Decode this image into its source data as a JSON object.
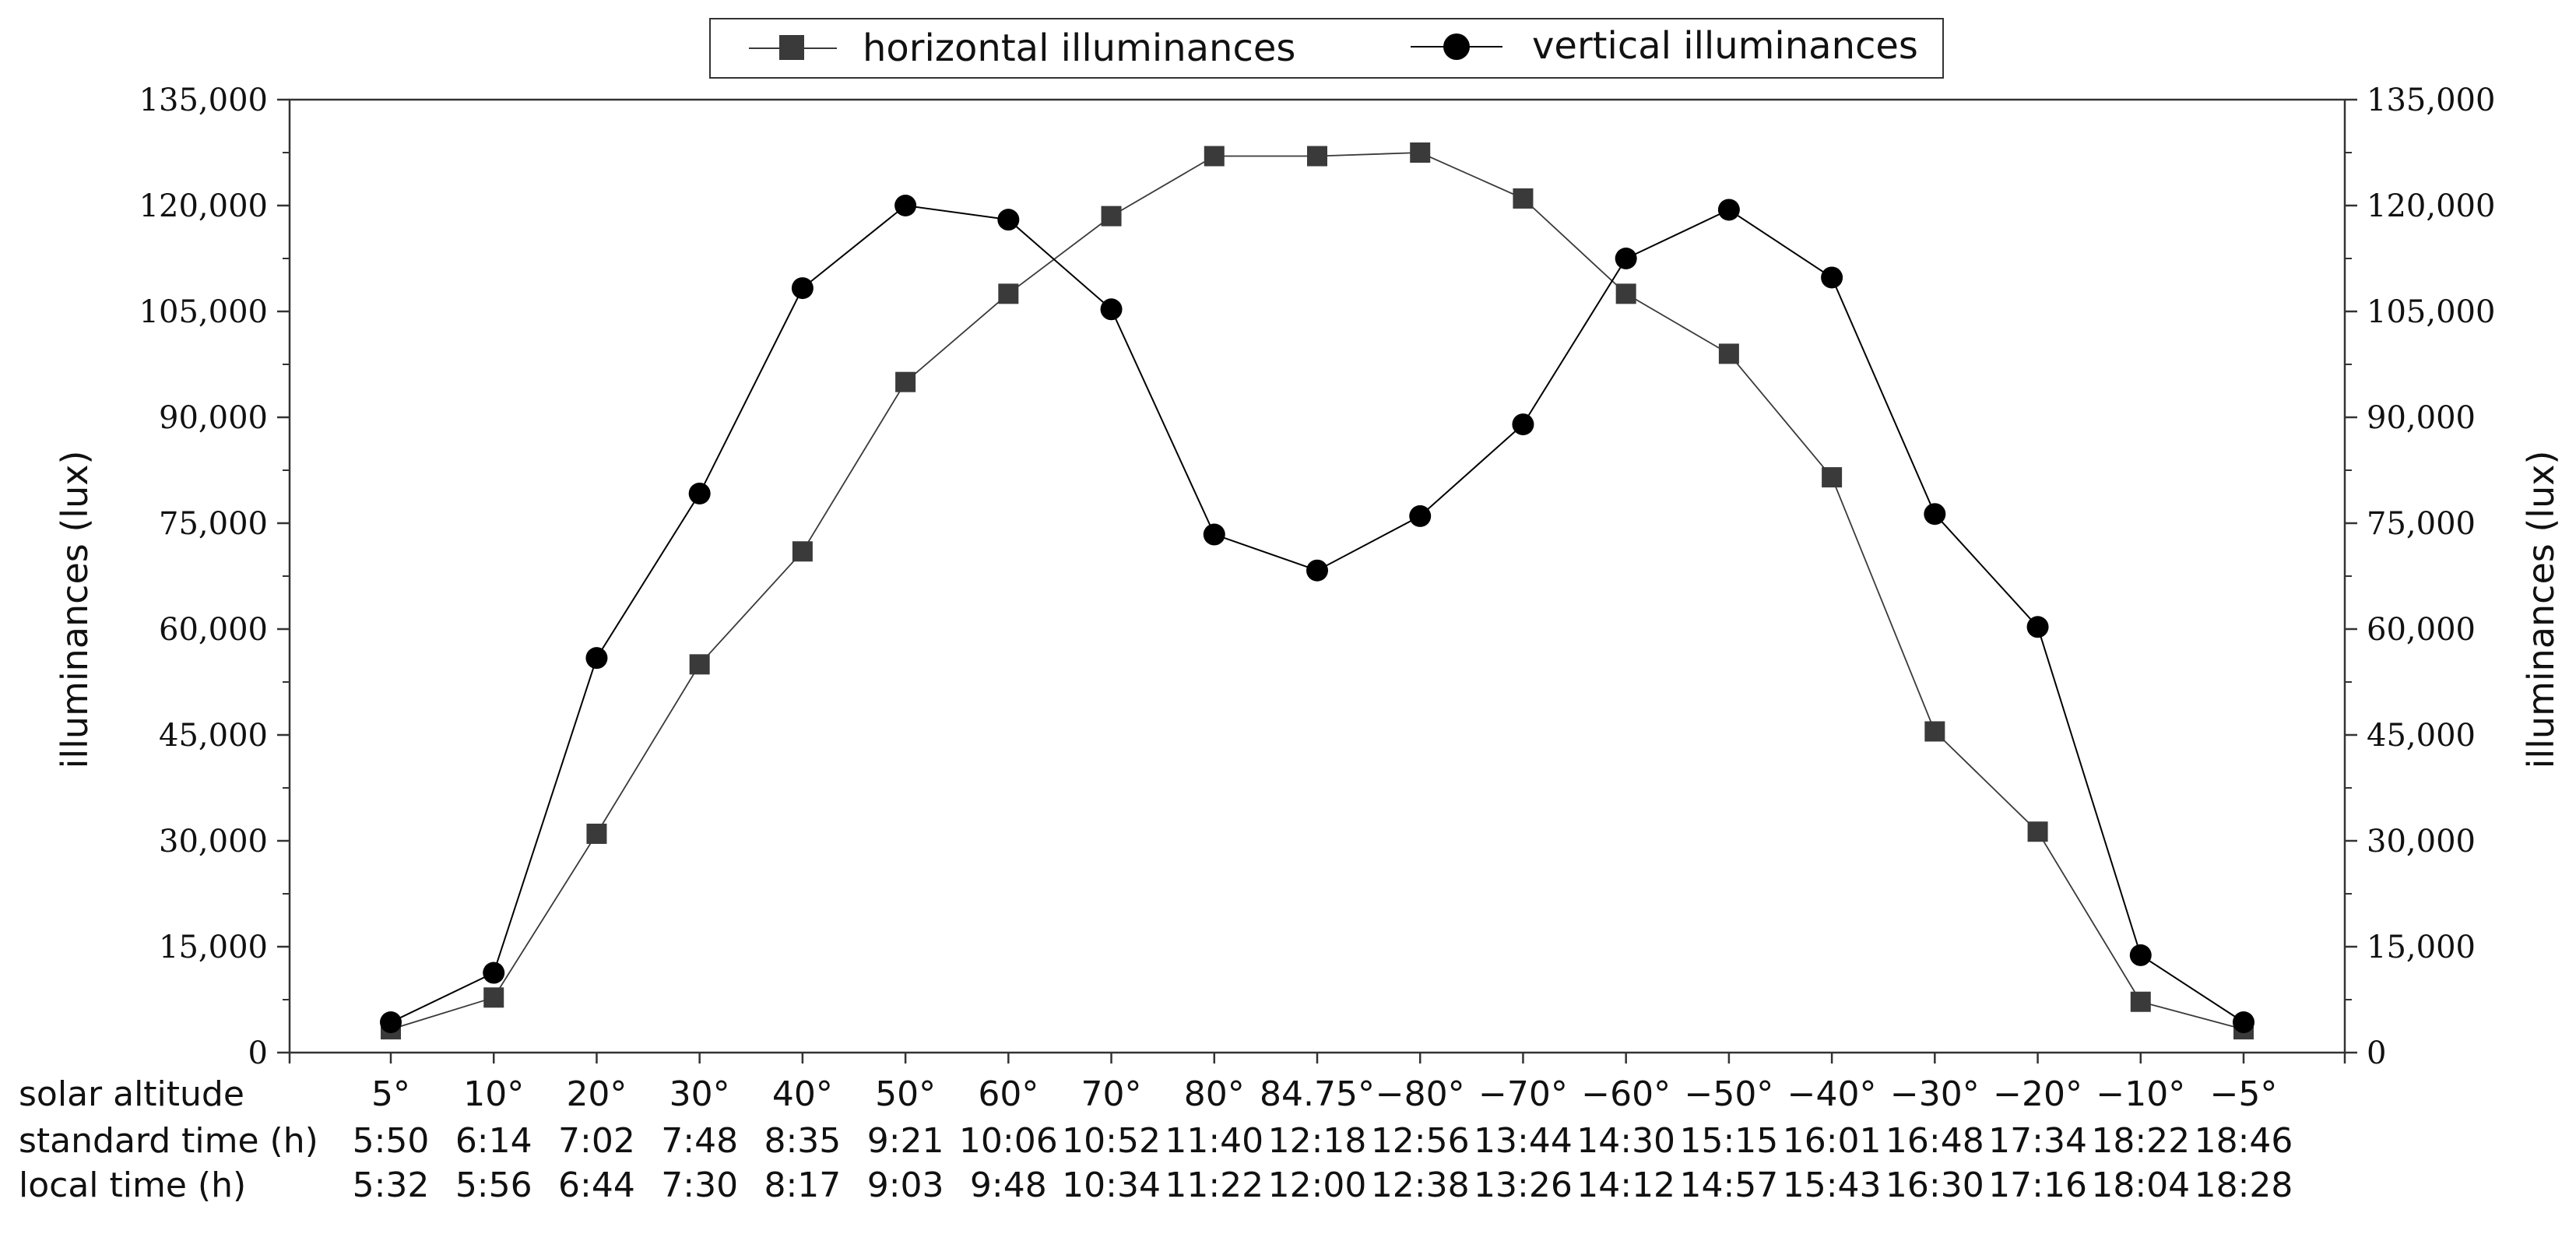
{
  "chart_data": {
    "type": "line",
    "title": "",
    "ylabel": "illuminances (lux)",
    "ylabel_right": "illuminances (lux)",
    "ylim": [
      0,
      135000
    ],
    "y_ticks": [
      "0",
      "15,000",
      "30,000",
      "45,000",
      "60,000",
      "75,000",
      "90,000",
      "105,000",
      "120,000",
      "135,000"
    ],
    "grid": false,
    "legend_position": "top-center",
    "row_labels": {
      "solar_altitude": "solar altitude",
      "standard_time": "standard time (h)",
      "local_time": "local time (h)"
    },
    "categories": [
      "5°",
      "10°",
      "20°",
      "30°",
      "40°",
      "50°",
      "60°",
      "70°",
      "80°",
      "84.75°",
      "−80°",
      "−70°",
      "−60°",
      "−50°",
      "−40°",
      "−30°",
      "−20°",
      "−10°",
      "−5°"
    ],
    "standard_time": [
      "5:50",
      "6:14",
      "7:02",
      "7:48",
      "8:35",
      "9:21",
      "10:06",
      "10:52",
      "11:40",
      "12:18",
      "12:56",
      "13:44",
      "14:30",
      "15:15",
      "16:01",
      "16:48",
      "17:34",
      "18:22",
      "18:46"
    ],
    "local_time": [
      "5:32",
      "5:56",
      "6:44",
      "7:30",
      "8:17",
      "9:03",
      "9:48",
      "10:34",
      "11:22",
      "12:00",
      "12:38",
      "13:26",
      "14:12",
      "14:57",
      "15:43",
      "16:30",
      "17:16",
      "18:04",
      "18:28"
    ],
    "series": [
      {
        "name": "horizontal illuminances",
        "marker": "square",
        "color": "#3a3a3a",
        "values": [
          3300,
          7800,
          31000,
          55000,
          71000,
          95000,
          107500,
          118500,
          127000,
          127000,
          127500,
          121000,
          107500,
          99000,
          81500,
          45500,
          31300,
          7200,
          3300
        ]
      },
      {
        "name": "vertical illuminances",
        "marker": "circle",
        "color": "#000000",
        "values": [
          4300,
          11300,
          55900,
          79200,
          108300,
          120000,
          118000,
          105300,
          73400,
          68300,
          76000,
          89000,
          112500,
          119400,
          109800,
          76300,
          60300,
          13800,
          4300
        ]
      }
    ]
  }
}
